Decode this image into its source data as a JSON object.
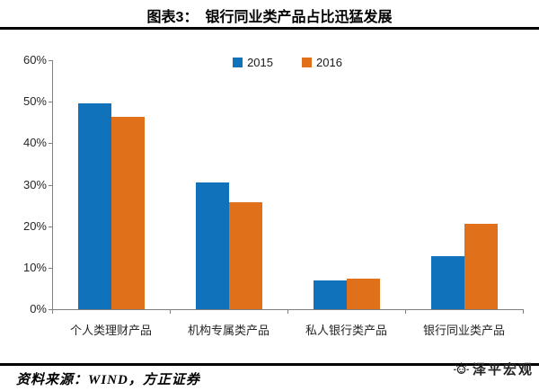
{
  "header": {
    "title": "图表3：　银行同业类产品占比迅猛发展"
  },
  "chart_data": {
    "type": "bar",
    "title": "图表3：　银行同业类产品占比迅猛发展",
    "categories": [
      "个人类理财产品",
      "机构专属类产品",
      "私人银行类产品",
      "银行同业类产品"
    ],
    "series": [
      {
        "name": "2015",
        "color": "#0F72BA",
        "values": [
          49.6,
          30.5,
          7.0,
          12.8
        ]
      },
      {
        "name": "2016",
        "color": "#E1701A",
        "values": [
          46.3,
          25.8,
          7.4,
          20.6
        ]
      }
    ],
    "xlabel": "",
    "ylabel": "",
    "ylim": [
      0,
      60
    ],
    "ytick_step": 10,
    "ytick_format": "percent",
    "grid": false,
    "legend_position": "top-center"
  },
  "footer": {
    "source": "资料来源：WIND，方正证券"
  },
  "watermark": {
    "icon": "sun-logo-icon",
    "text": "泽平宏观"
  },
  "colors": {
    "series_2015": "#0F72BA",
    "series_2016": "#E1701A",
    "axis": "#7f7f7f",
    "rule": "#000000",
    "text": "#262626"
  }
}
